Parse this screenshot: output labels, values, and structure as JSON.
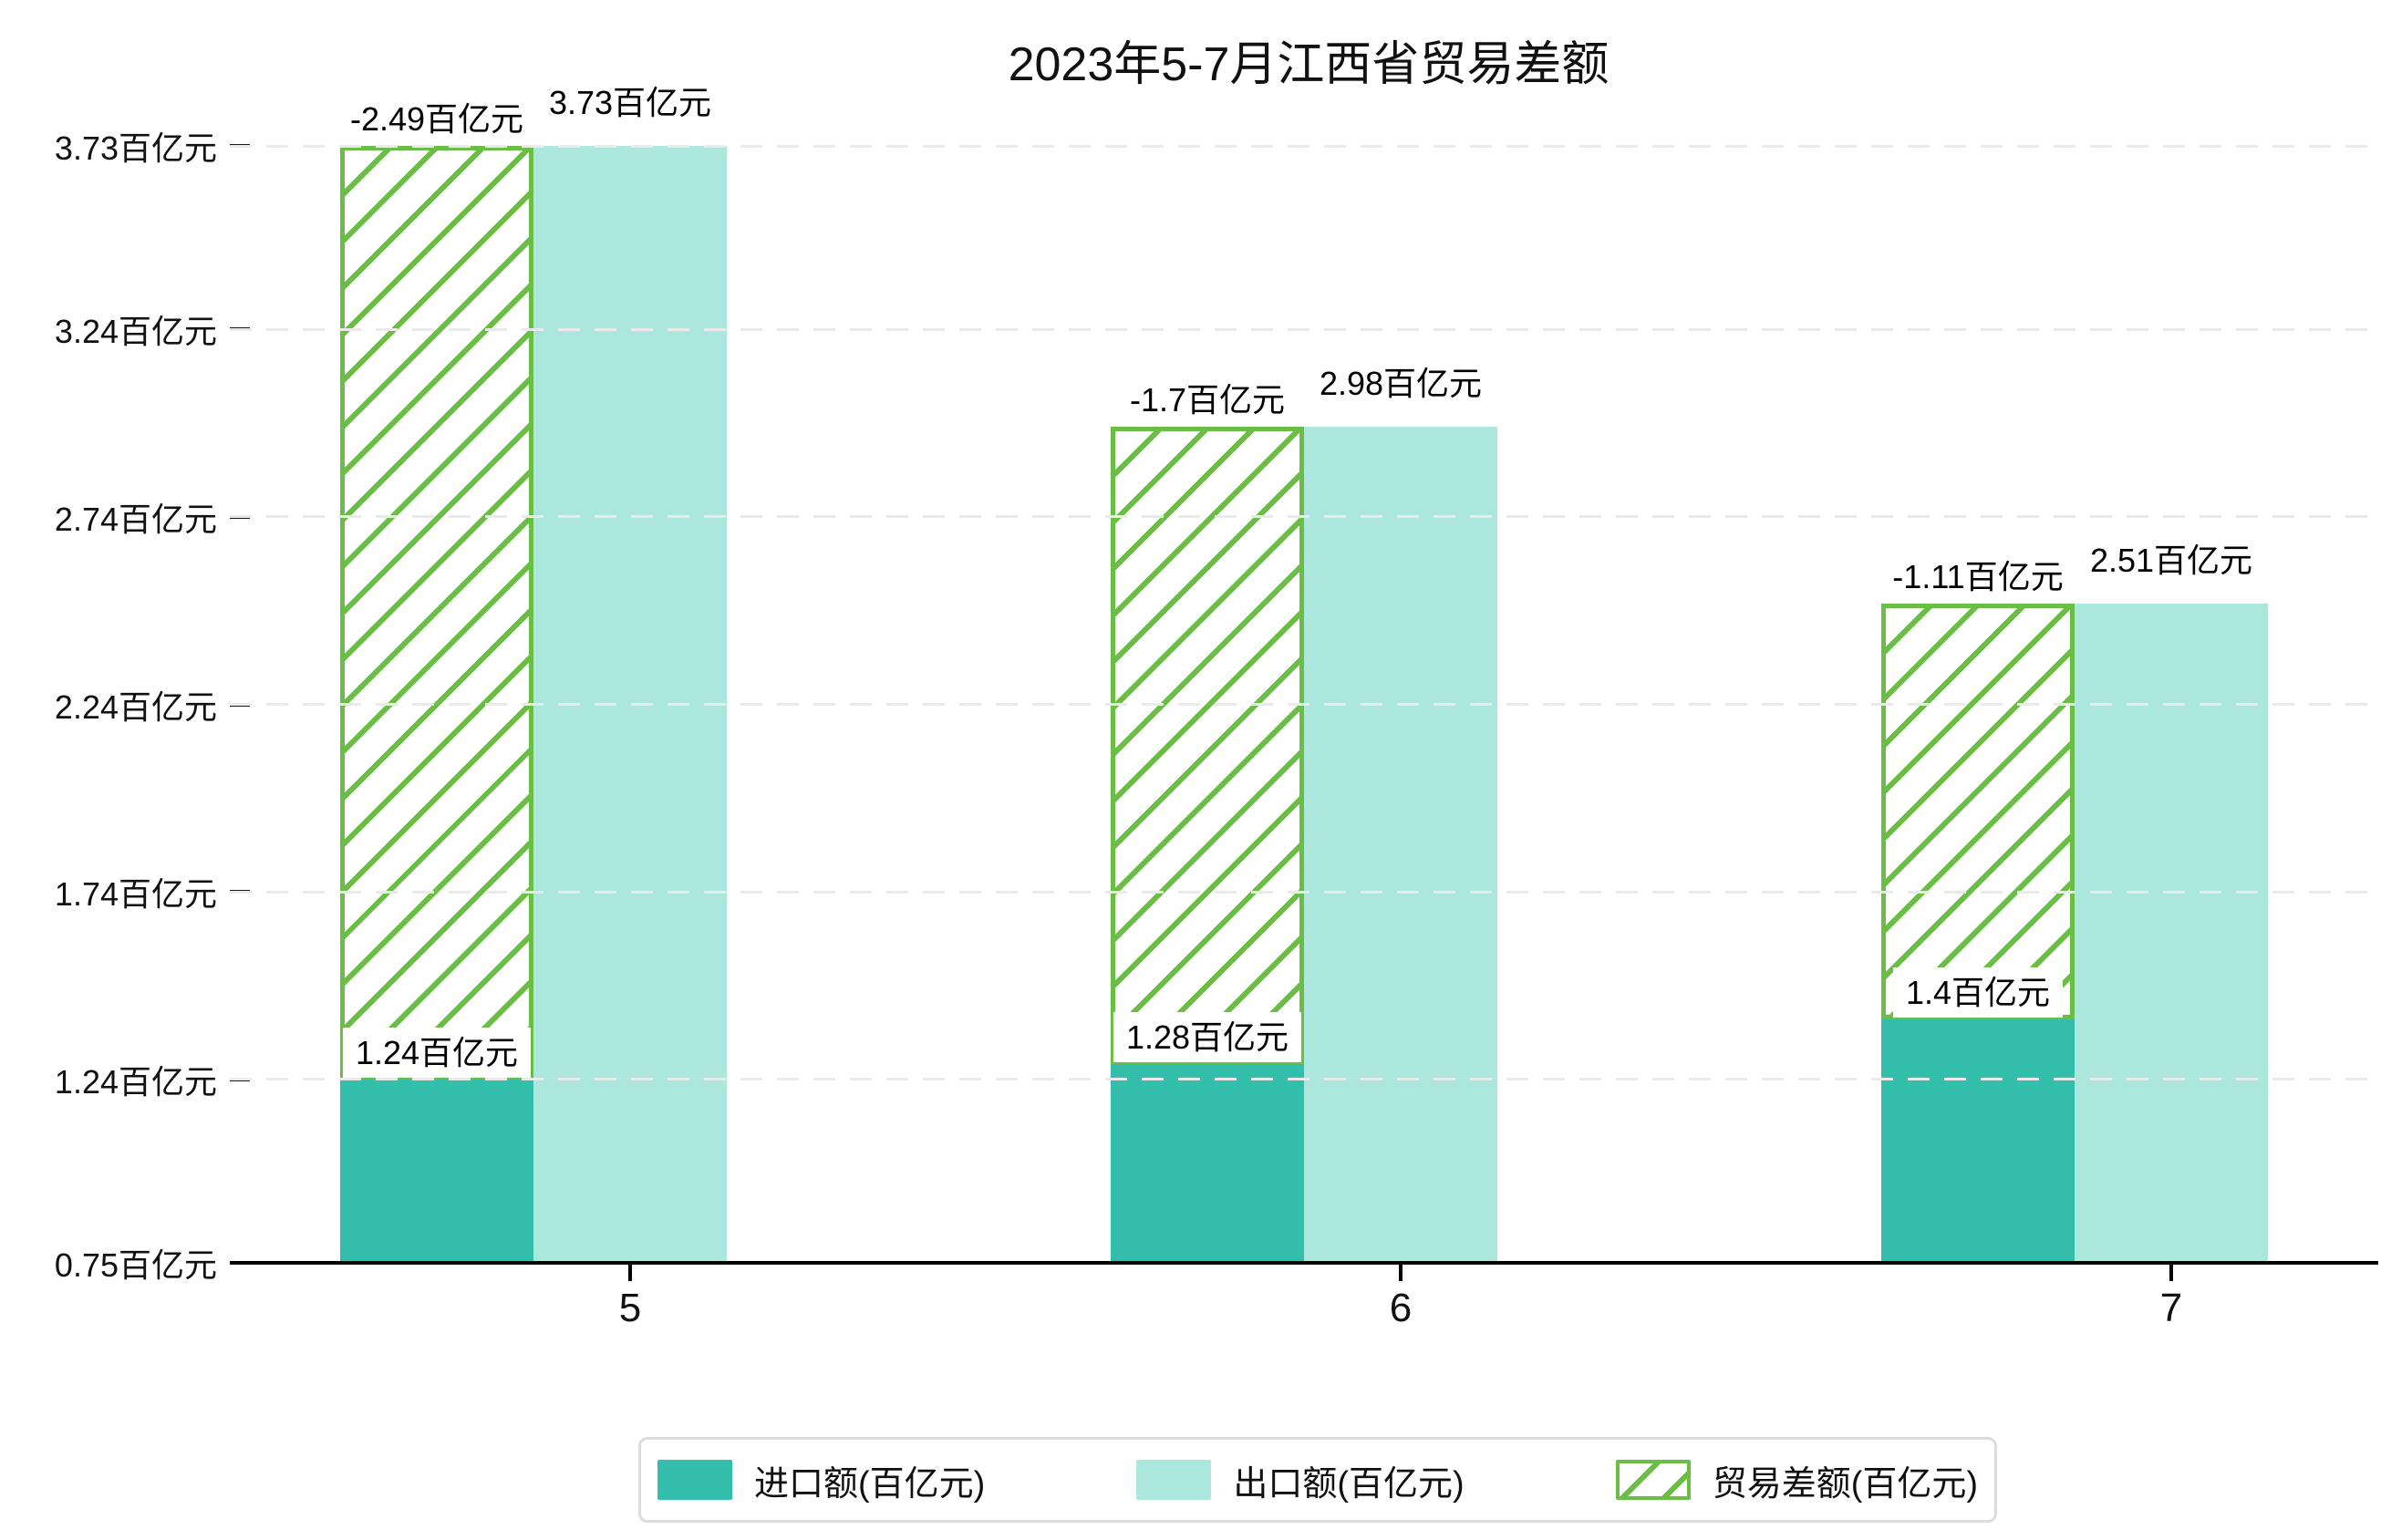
{
  "chart_data": {
    "type": "bar",
    "title": "2023年5-7月江西省贸易差额",
    "xlabel": "",
    "ylabel": "",
    "categories": [
      "5",
      "6",
      "7"
    ],
    "series": [
      {
        "name": "进口额(百亿元)",
        "role": "import",
        "values": [
          1.24,
          1.28,
          1.4
        ],
        "labels": [
          "1.24百亿元",
          "1.28百亿元",
          "1.4百亿元"
        ],
        "color": "#33bdab",
        "style": "solid"
      },
      {
        "name": "出口额(百亿元)",
        "role": "export",
        "values": [
          3.73,
          2.98,
          2.51
        ],
        "labels": [
          "3.73百亿元",
          "2.98百亿元",
          "2.51百亿元"
        ],
        "color": "#abe7dd",
        "style": "solid"
      },
      {
        "name": "贸易差额(百亿元)",
        "role": "trade-balance",
        "values": [
          -2.49,
          -1.7,
          -1.11
        ],
        "labels": [
          "-2.49百亿元",
          "-1.7百亿元",
          "-1.11百亿元"
        ],
        "color": "#6abe45",
        "style": "hatched",
        "note": "hatched bar spans from import value up to export value"
      }
    ],
    "ylim": [
      0.75,
      3.73
    ],
    "yticks": [
      {
        "v": 0.75,
        "label": "0.75百亿元"
      },
      {
        "v": 1.24,
        "label": "1.24百亿元"
      },
      {
        "v": 1.74,
        "label": "1.74百亿元"
      },
      {
        "v": 2.24,
        "label": "2.24百亿元"
      },
      {
        "v": 2.74,
        "label": "2.74百亿元"
      },
      {
        "v": 3.24,
        "label": "3.24百亿元"
      },
      {
        "v": 3.73,
        "label": "3.73百亿元"
      }
    ],
    "grid": "dashed-horizontal",
    "legend_position": "bottom-center",
    "colors": {
      "import": "#33bdab",
      "export": "#abe7dd",
      "balance_hatch": "#6abe45",
      "gridline": "#eaeaea",
      "axis": "#000000",
      "legend_border": "#dcdcdc"
    }
  }
}
